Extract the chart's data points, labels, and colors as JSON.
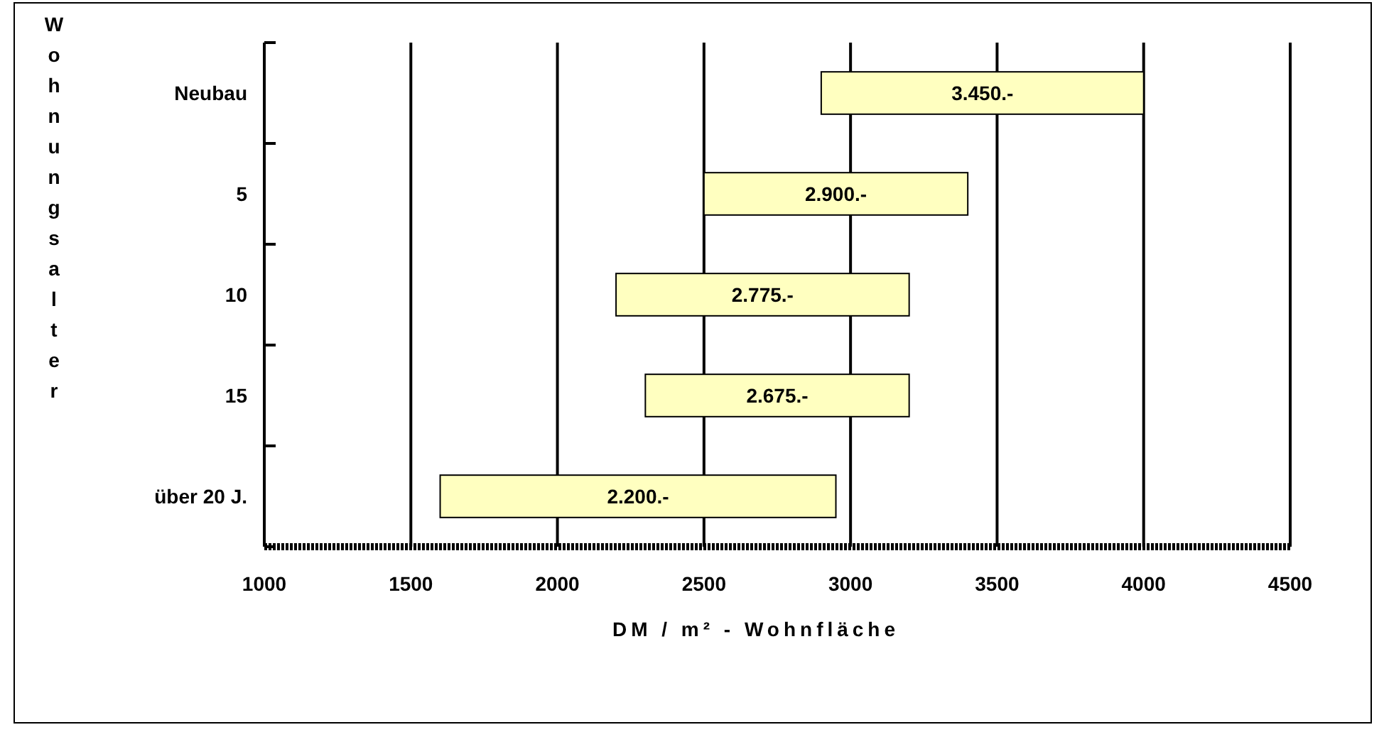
{
  "chart_data": {
    "type": "bar",
    "orientation": "horizontal",
    "categories": [
      "Neubau",
      "5",
      "10",
      "15",
      "über 20 J."
    ],
    "base": [
      2900,
      2500,
      2200,
      2300,
      1600
    ],
    "values": [
      1100,
      900,
      1000,
      900,
      1350
    ],
    "annotations": [
      "3.450.-",
      "2.900.-",
      "2.775.-",
      "2.675.-",
      "2.200.-"
    ],
    "color": "#ffffc0",
    "xlim": [
      1000,
      4500
    ],
    "xticks": [
      1000,
      1500,
      2000,
      2500,
      3000,
      3500,
      4000,
      4500
    ],
    "xlabel": "DM / m² - Wohnfläche",
    "ylabel": "Wohnungsalter",
    "grid": "x"
  }
}
